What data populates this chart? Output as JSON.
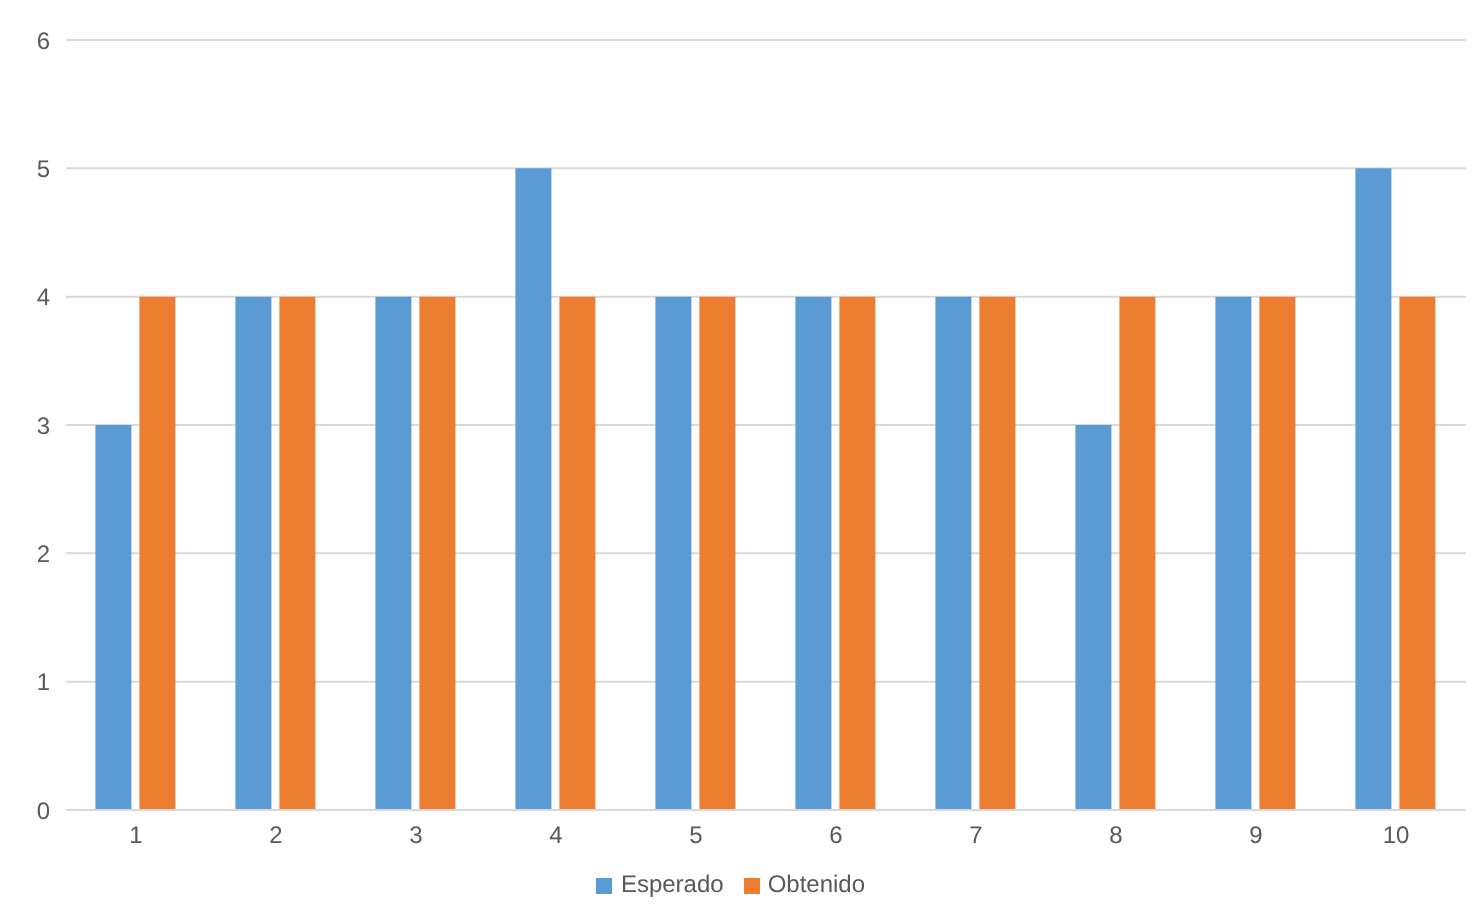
{
  "chart_data": {
    "type": "bar",
    "categories": [
      "1",
      "2",
      "3",
      "4",
      "5",
      "6",
      "7",
      "8",
      "9",
      "10"
    ],
    "series": [
      {
        "name": "Esperado",
        "color": "#5b9bd5",
        "values": [
          3,
          4,
          4,
          5,
          4,
          4,
          4,
          3,
          4,
          5
        ]
      },
      {
        "name": "Obtenido",
        "color": "#ed7d31",
        "values": [
          4,
          4,
          4,
          4,
          4,
          4,
          4,
          4,
          4,
          4
        ]
      }
    ],
    "ylim": [
      0,
      6
    ],
    "yticks": [
      0,
      1,
      2,
      3,
      4,
      5,
      6
    ],
    "grid": "y",
    "legend": "bottom"
  }
}
